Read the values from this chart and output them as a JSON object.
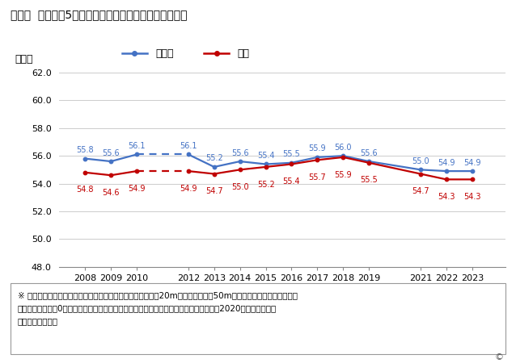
{
  "title": "栃木県  女子小剶5年生の体力運動能力は向上しているか",
  "ylabel": "［点］",
  "years": [
    2008,
    2009,
    2010,
    2012,
    2013,
    2014,
    2015,
    2016,
    2017,
    2018,
    2019,
    2021,
    2022,
    2023
  ],
  "tochigi": [
    55.8,
    55.6,
    56.1,
    56.1,
    55.2,
    55.6,
    55.4,
    55.5,
    55.9,
    56.0,
    55.6,
    55.0,
    54.9,
    54.9
  ],
  "zenkoku": [
    54.8,
    54.6,
    54.9,
    54.9,
    54.7,
    55.0,
    55.2,
    55.4,
    55.7,
    55.9,
    55.5,
    54.7,
    54.3,
    54.3
  ],
  "tochigi_color": "#4472C4",
  "zenkoku_color": "#C00000",
  "ylim_min": 48.0,
  "ylim_max": 62.0,
  "yticks": [
    48.0,
    50.0,
    52.0,
    54.0,
    56.0,
    58.0,
    60.0,
    62.0
  ],
  "legend_tochigi": "栃木県",
  "legend_zenkoku": "全国",
  "footnote_line1": "※ 総合点は、握力、上体起こし、長座体前屈、反復横とび、20mシャトルラン、50m走、立ち幅とび、ソフトボー",
  "footnote_line2": "ル投げの各種目を0点満点で評価した合計点。評価基準（男女別）は全学年共通。なお、2020年はコロナ祸の",
  "footnote_line3": "ため調査がない。",
  "copyright": "©",
  "background_color": "#ffffff"
}
